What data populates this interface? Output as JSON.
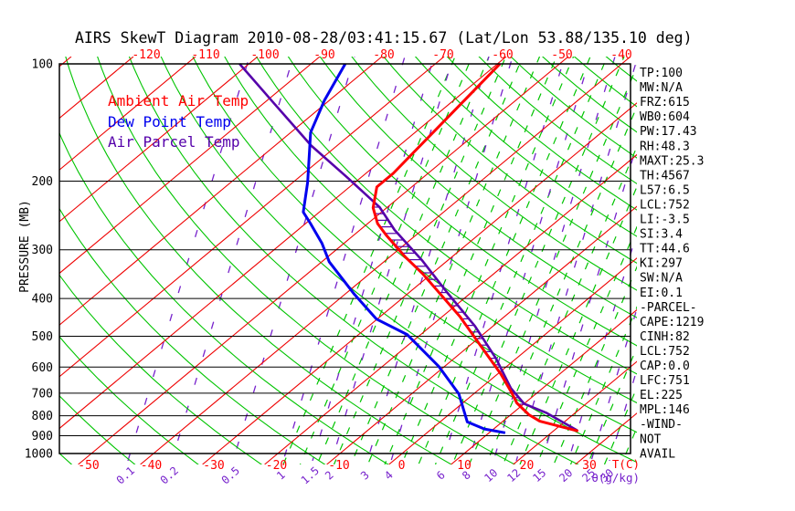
{
  "title": "AIRS SkewT Diagram 2010-08-28/03:41:15.67 (Lat/Lon 53.88/135.10 deg)",
  "legend": {
    "ambient": {
      "label": "Ambient Air Temp",
      "color": "#ff0000"
    },
    "dew": {
      "label": "Dew Point Temp",
      "color": "#0000ee"
    },
    "parcel": {
      "label": "Air Parcel Temp",
      "color": "#5500aa"
    }
  },
  "axes": {
    "pressure_label": "PRESSURE (MB)",
    "pressure_levels": [
      100,
      200,
      300,
      400,
      500,
      600,
      700,
      800,
      900,
      1000
    ],
    "top_temp_labels": [
      -120,
      -110,
      -100,
      -90,
      -80,
      -70,
      -60,
      -50,
      -40
    ],
    "bottom_temp_labels": [
      -50,
      -40,
      -30,
      -20,
      -10,
      0,
      10,
      20,
      30
    ],
    "temp_unit": "T(C)",
    "mixing_unit": "θ(g/kg)",
    "mixing_labels": [
      0.1,
      0.2,
      0.5,
      1,
      1.5,
      2,
      3,
      4,
      6,
      8,
      10,
      12,
      15,
      20,
      25,
      30
    ]
  },
  "stats": [
    "TP:100",
    "MW:N/A",
    "FRZ:615",
    "WB0:604",
    "PW:17.43",
    "RH:48.3",
    "MAXT:25.3",
    "TH:4567",
    "L57:6.5",
    "LCL:752",
    "LI:-3.5",
    "SI:3.4",
    "TT:44.6",
    "KI:297",
    "SW:N/A",
    "EI:0.1",
    "-PARCEL-",
    "CAPE:1219",
    "CINH:82",
    "LCL:752",
    "CAP:0.0",
    "LFC:751",
    "EL:225",
    "MPL:146",
    "-WIND-",
    "NOT",
    "AVAIL"
  ],
  "grid_colors": {
    "isotherm": "#ee0000",
    "dry_adiabat": "#00c400",
    "moist_adiabat": "#00c400",
    "mixing_line": "#7722cc",
    "pressure_line": "#000000"
  },
  "chart_data": {
    "type": "line",
    "title": "AIRS SkewT Diagram 2010-08-28/03:41:15.67 (Lat/Lon 53.88/135.10 deg)",
    "xlabel": "T(C)",
    "ylabel": "PRESSURE (MB)",
    "y_scale": "log-pressure, 100-1000 mb",
    "x_scale": "skewed temperature, -50 to 30 C at surface",
    "series": [
      {
        "name": "Ambient Air Temp",
        "color": "#ff0000",
        "points_p_t": [
          [
            100,
            -59.6
          ],
          [
            191,
            -55.6
          ],
          [
            207,
            -55.6
          ],
          [
            234,
            -52.2
          ],
          [
            257,
            -48.4
          ],
          [
            275,
            -44.8
          ],
          [
            313,
            -37.5
          ],
          [
            346,
            -31.4
          ],
          [
            445,
            -17.2
          ],
          [
            555,
            -5.7
          ],
          [
            625,
            0.5
          ],
          [
            697,
            5.8
          ],
          [
            742,
            8.7
          ],
          [
            795,
            12.9
          ],
          [
            826,
            15.9
          ],
          [
            876,
            24.0
          ]
        ]
      },
      {
        "name": "Dew Point Temp",
        "color": "#0000ee",
        "points_p_t": [
          [
            100,
            -84.5
          ],
          [
            124,
            -80.8
          ],
          [
            150,
            -76.8
          ],
          [
            201,
            -67.7
          ],
          [
            240,
            -62.6
          ],
          [
            257,
            -59.2
          ],
          [
            289,
            -53.5
          ],
          [
            322,
            -48.8
          ],
          [
            390,
            -38.5
          ],
          [
            452,
            -30.1
          ],
          [
            495,
            -22.2
          ],
          [
            598,
            -10.9
          ],
          [
            703,
            -2.4
          ],
          [
            830,
            4.4
          ],
          [
            865,
            8.5
          ],
          [
            885,
            12.6
          ]
        ]
      },
      {
        "name": "Air Parcel Temp",
        "color": "#5500aa",
        "points_p_t": [
          [
            100,
            -101.5
          ],
          [
            127,
            -88.0
          ],
          [
            162,
            -74.2
          ],
          [
            196,
            -62.1
          ],
          [
            233,
            -51.3
          ],
          [
            267,
            -44.4
          ],
          [
            319,
            -34.2
          ],
          [
            386,
            -23.9
          ],
          [
            471,
            -12.9
          ],
          [
            571,
            -3.2
          ],
          [
            680,
            4.9
          ],
          [
            745,
            10.0
          ],
          [
            786,
            15.3
          ],
          [
            872,
            23.7
          ]
        ]
      }
    ],
    "cape_hatch_between": [
      "Ambient Air Temp",
      "Air Parcel Temp"
    ],
    "cape_hatch_p_range": [
      232,
      750
    ]
  }
}
